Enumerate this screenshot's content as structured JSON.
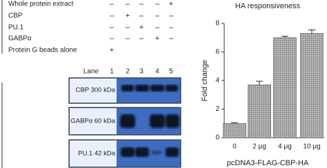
{
  "table": {
    "rows": [
      {
        "label": "Whole protein extract",
        "signs": [
          "–",
          "–",
          "–",
          "–",
          "+"
        ]
      },
      {
        "label": "CBP",
        "signs": [
          "–",
          "+",
          "–",
          "–",
          "–"
        ]
      },
      {
        "label": "PU.1",
        "signs": [
          "–",
          "–",
          "+",
          "–",
          "–"
        ]
      },
      {
        "label": "GABPα",
        "signs": [
          "–",
          "–",
          "–",
          "+",
          "–"
        ]
      },
      {
        "label": "Protein G beads alone",
        "signs": [
          "+",
          null,
          null,
          null,
          null
        ]
      }
    ]
  },
  "blot": {
    "lane_label": "Lane",
    "lanes": [
      "1",
      "2",
      "3",
      "4",
      "5"
    ],
    "panels": [
      "CBP 300 kDa",
      "GABPα 60 kDa",
      "PU.1 42 kDa"
    ]
  },
  "chart_data": {
    "type": "bar",
    "title": "HA responsiveness",
    "categories": [
      "0",
      "2 μg",
      "4 μg",
      "10 μg"
    ],
    "values": [
      1.0,
      3.7,
      7.0,
      7.3
    ],
    "errors": [
      0.05,
      0.25,
      0.1,
      0.25
    ],
    "color": "#b4b4b4",
    "ylim": [
      0,
      8
    ],
    "yticks": [
      0,
      2,
      4,
      6,
      8
    ],
    "ylabel": "Fold change",
    "xlabel": "pcDNA3-FLAG-CBP-HA"
  }
}
